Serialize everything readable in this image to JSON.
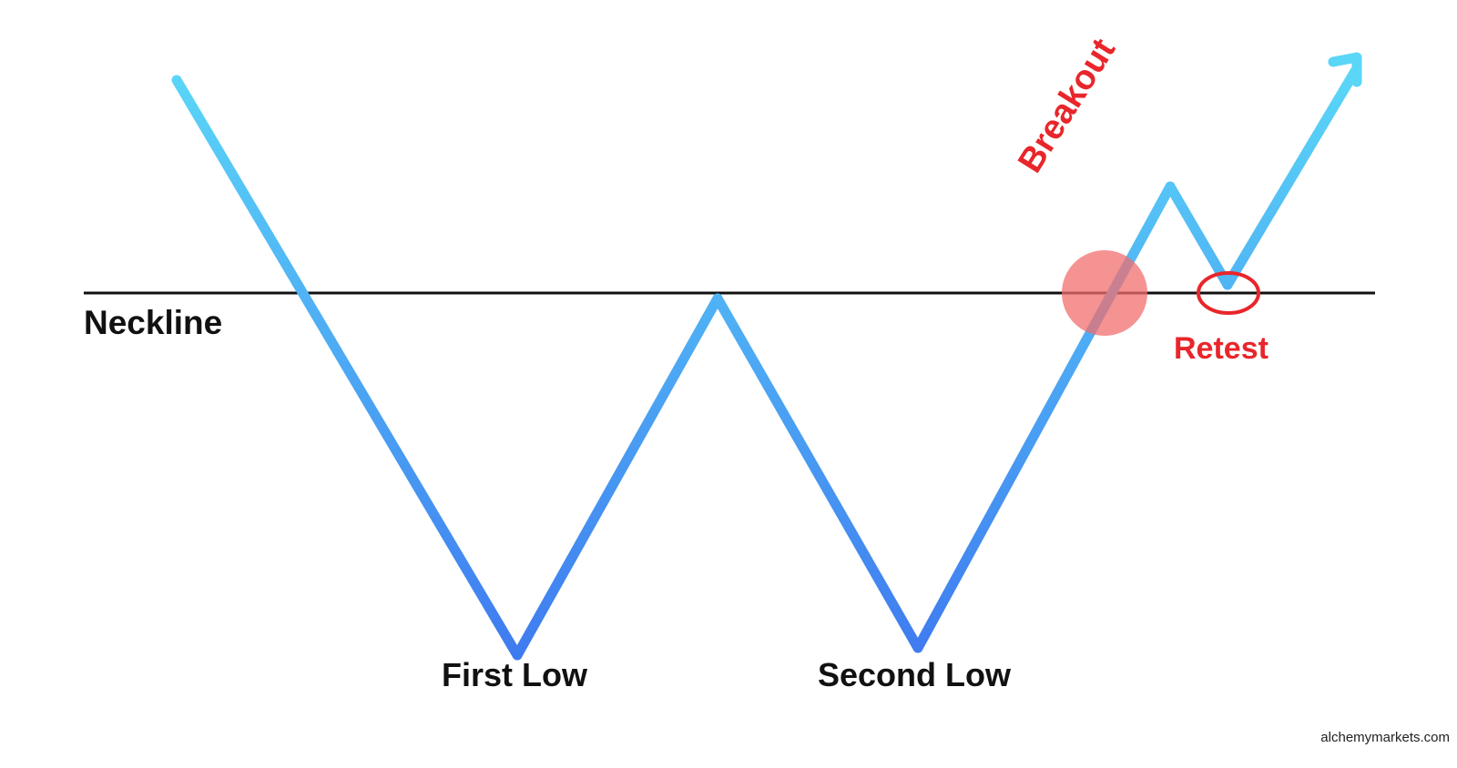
{
  "labels": {
    "neckline": "Neckline",
    "first_low": "First Low",
    "second_low": "Second Low",
    "breakout": "Breakout",
    "retest": "Retest"
  },
  "watermark": "alchemymarkets.com",
  "colors": {
    "line_light": "#5ad6f7",
    "line_dark": "#3f7bf0",
    "neckline": "#111111",
    "text": "#111111",
    "annotation": "#e8262b",
    "breakout_marker": "#f26d6d"
  }
}
